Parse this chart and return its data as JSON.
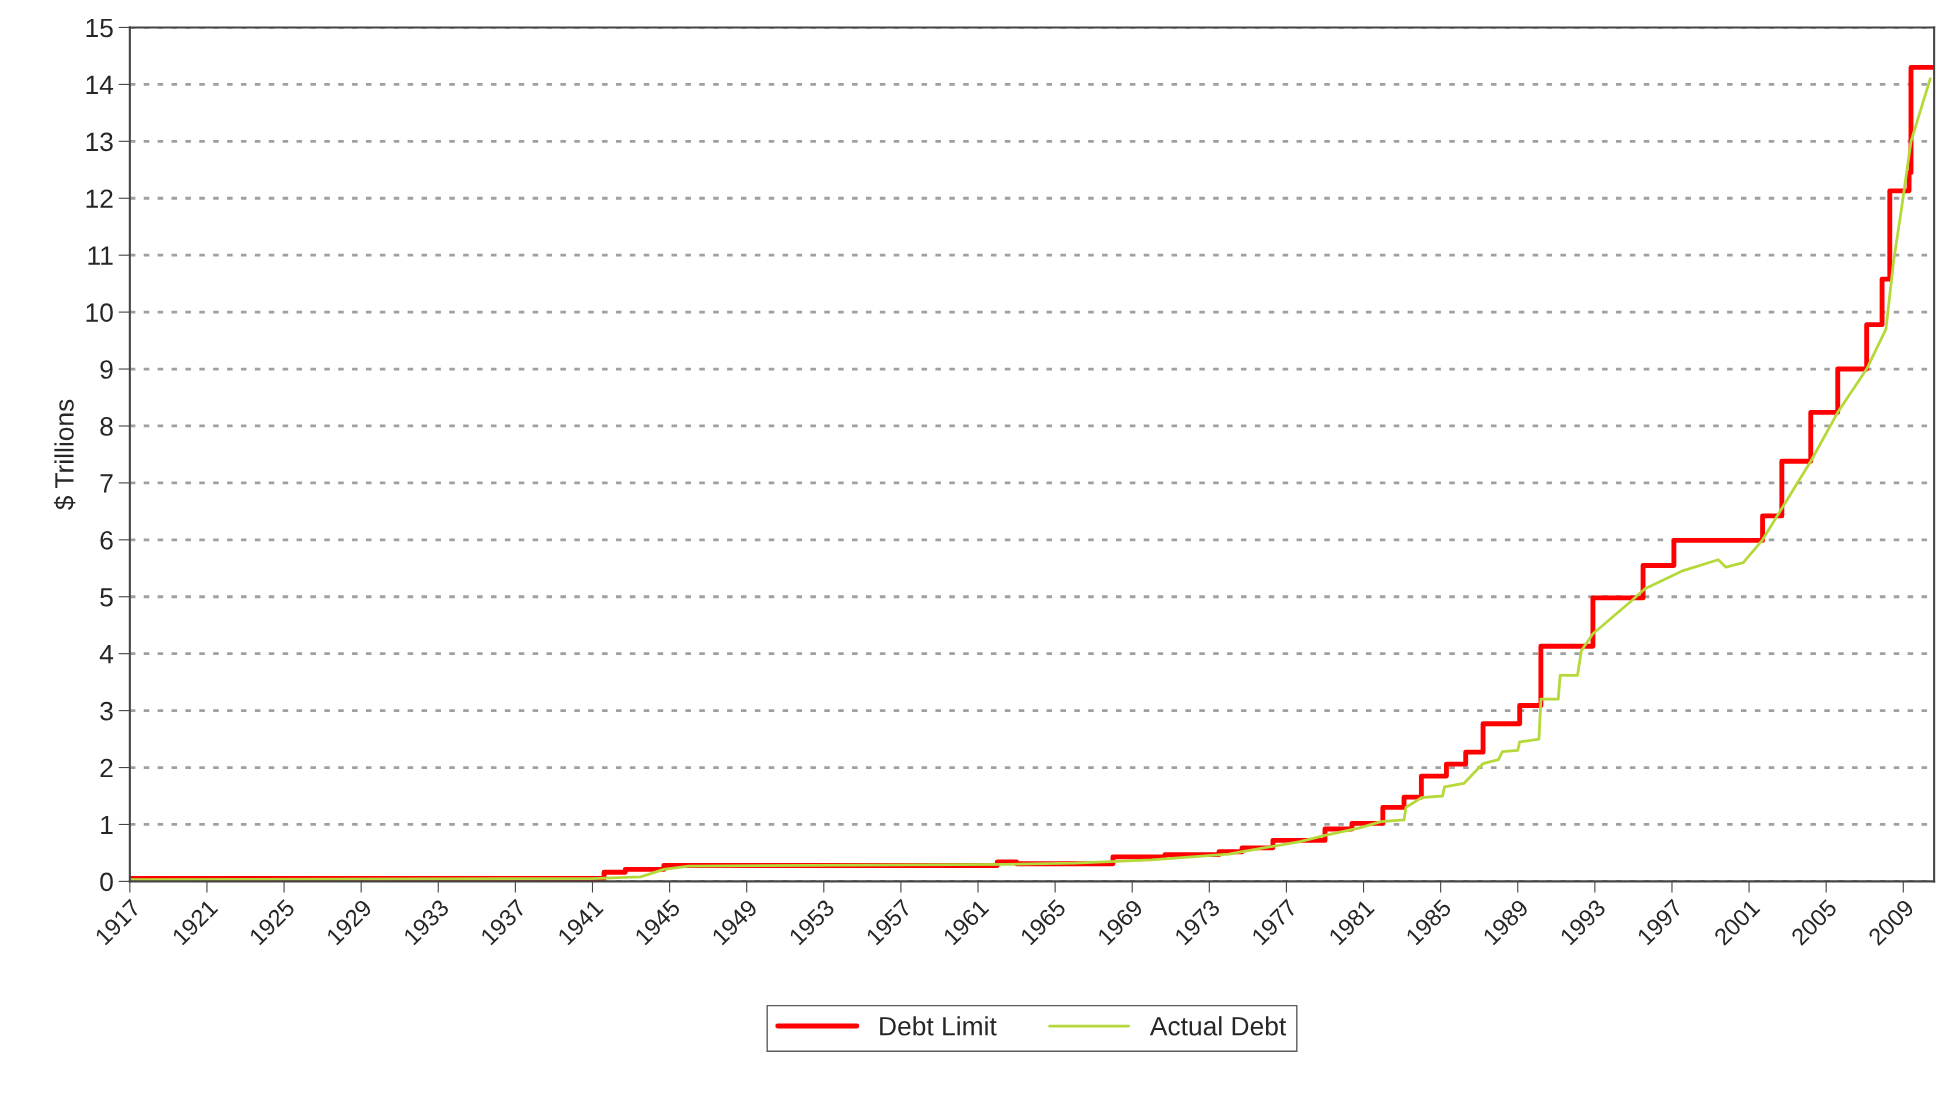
{
  "chart_data": {
    "type": "line",
    "ylabel": "$ Trillions",
    "xlim": [
      1917,
      2010.6
    ],
    "xticks": [
      1917,
      1921,
      1925,
      1929,
      1933,
      1937,
      1941,
      1945,
      1949,
      1953,
      1957,
      1961,
      1965,
      1969,
      1973,
      1977,
      1981,
      1985,
      1989,
      1993,
      1997,
      2001,
      2005,
      2009
    ],
    "ylim": [
      0,
      15
    ],
    "yticks": [
      0,
      1,
      2,
      3,
      4,
      5,
      6,
      7,
      8,
      9,
      10,
      11,
      12,
      13,
      14,
      15
    ],
    "grid": "y",
    "legend": "bottom",
    "series": [
      {
        "name": "Debt Limit",
        "type": "step",
        "color": "#ff0000",
        "x": [
          1917,
          1935,
          1941.6,
          1942.7,
          1944.7,
          1962,
          1963,
          1968,
          1970.7,
          1973.5,
          1974.7,
          1976.3,
          1979.0,
          1980.4,
          1982.0,
          1983.1,
          1984.0,
          1985.3,
          1986.3,
          1987.2,
          1989.1,
          1990.2,
          1992.9,
          1995.5,
          1997.1,
          2001.7,
          2002.7,
          2004.2,
          2005.6,
          2007.1,
          2007.9,
          2008.3,
          2009.3,
          2009.4,
          2010.6
        ],
        "values": [
          0.05,
          0.05,
          0.16,
          0.21,
          0.28,
          0.34,
          0.31,
          0.43,
          0.47,
          0.52,
          0.59,
          0.72,
          0.92,
          1.02,
          1.3,
          1.48,
          1.85,
          2.06,
          2.27,
          2.77,
          3.09,
          4.13,
          4.98,
          5.55,
          5.99,
          6.42,
          7.38,
          8.24,
          9.0,
          9.78,
          10.58,
          12.13,
          12.45,
          14.3,
          14.3
        ]
      },
      {
        "name": "Actual Debt",
        "color": "#b5d93a",
        "x": [
          1917,
          1941,
          1942.7,
          1943.5,
          1944.7,
          1946,
          1962.5,
          1966,
          1970,
          1974,
          1977.7,
          1979.0,
          1980.8,
          1981.9,
          1983.1,
          1983.2,
          1984.0,
          1985.1,
          1985.2,
          1986.2,
          1987.2,
          1988.0,
          1988.2,
          1989.0,
          1989.1,
          1990.1,
          1990.2,
          1991.1,
          1991.2,
          1992.1,
          1992.3,
          1992.9,
          1994.8,
          1995.6,
          1997.5,
          1999.4,
          1999.8,
          2000.7,
          2001.7,
          2004.2,
          2005.6,
          2007.1,
          2008.1,
          2008.5,
          2008.9,
          2009.4,
          2010.4
        ],
        "values": [
          0.03,
          0.05,
          0.07,
          0.08,
          0.21,
          0.27,
          0.3,
          0.32,
          0.38,
          0.48,
          0.7,
          0.81,
          0.94,
          1.05,
          1.08,
          1.3,
          1.47,
          1.5,
          1.66,
          1.72,
          2.07,
          2.14,
          2.28,
          2.3,
          2.45,
          2.5,
          3.2,
          3.2,
          3.62,
          3.62,
          4.05,
          4.35,
          4.9,
          5.14,
          5.45,
          5.65,
          5.52,
          5.6,
          6.0,
          7.38,
          8.24,
          9.0,
          9.7,
          10.9,
          11.8,
          13.0,
          14.1
        ]
      }
    ]
  }
}
